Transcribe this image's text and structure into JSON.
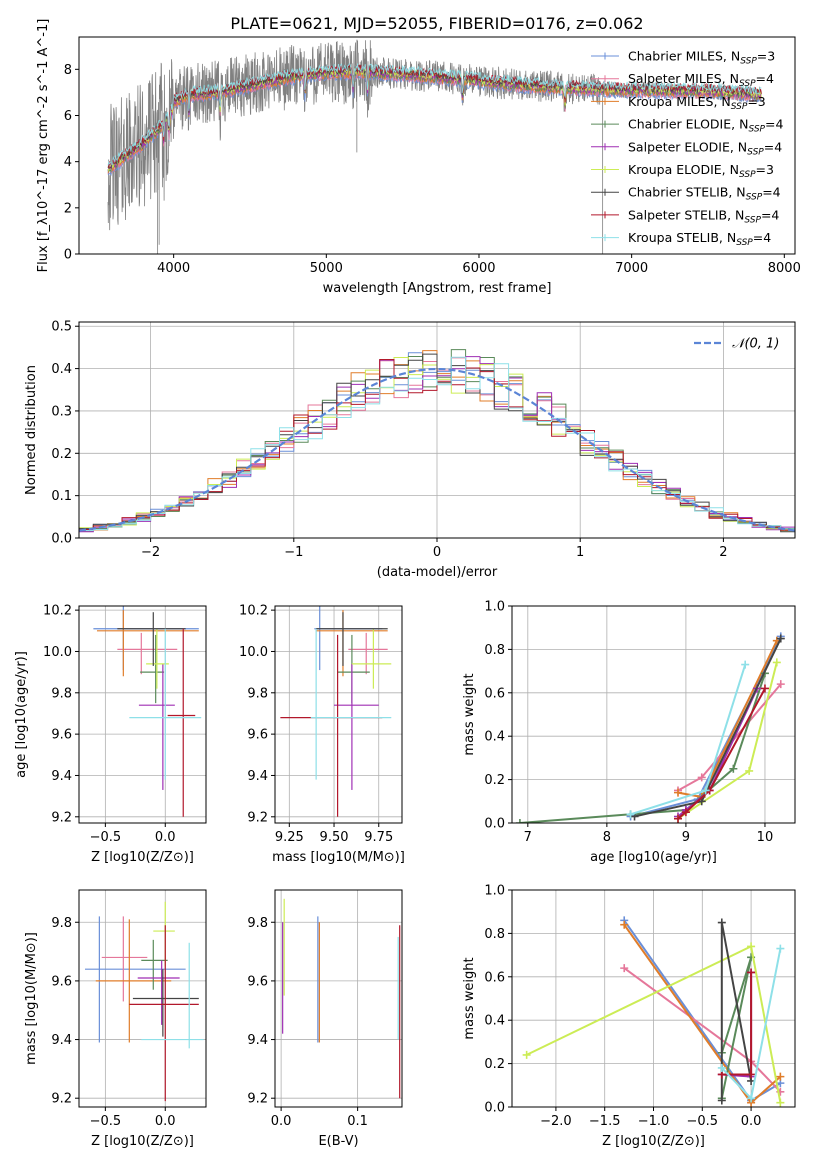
{
  "figure": {
    "title": "PLATE=0621, MJD=52055, FIBERID=0176, z=0.062"
  },
  "colors": {
    "spectrum": "#808080",
    "models": [
      "#6a8fd8",
      "#e5779a",
      "#e07d2a",
      "#5a8a5a",
      "#9f2fb4",
      "#ccec55",
      "#444444",
      "#b2182b",
      "#8ee0e8"
    ],
    "gaussian": "#5b85d6",
    "grid": "#b0b0b0"
  },
  "chart_data": [
    {
      "id": "spectrum",
      "type": "line",
      "title": "PLATE=0621, MJD=52055, FIBERID=0176, z=0.062",
      "xlabel": "wavelength [Angstrom, rest frame]",
      "ylabel": "Flux [f_λ10^-17 erg cm^-2 s^-1 A^-1]",
      "xlim": [
        3380,
        8070
      ],
      "ylim": [
        0,
        9.4
      ],
      "xticks": [
        4000,
        5000,
        6000,
        7000,
        8000
      ],
      "yticks": [
        0,
        2,
        4,
        6,
        8
      ],
      "grid": false,
      "legend_position": "upper-right",
      "continuum": [
        [
          3570,
          4.0
        ],
        [
          3700,
          4.6
        ],
        [
          3800,
          5.1
        ],
        [
          3900,
          5.7
        ],
        [
          4000,
          6.6
        ],
        [
          4100,
          6.9
        ],
        [
          4300,
          7.0
        ],
        [
          4500,
          7.3
        ],
        [
          4800,
          7.7
        ],
        [
          5000,
          7.85
        ],
        [
          5200,
          7.9
        ],
        [
          5500,
          7.8
        ],
        [
          6000,
          7.5
        ],
        [
          6300,
          7.3
        ],
        [
          6700,
          7.15
        ],
        [
          7000,
          7.1
        ],
        [
          7500,
          7.05
        ],
        [
          7850,
          6.9
        ]
      ],
      "absorption_lines": [
        3934,
        3969,
        4101,
        4304,
        4861,
        5175,
        5270,
        5892,
        6563
      ],
      "series": [
        {
          "name": "Chabrier MILES, N_SSP=3",
          "label_main": "Chabrier MILES, N",
          "label_sub": "SSP",
          "label_tail": "=3"
        },
        {
          "name": "Salpeter MILES, N_SSP=4",
          "label_main": "Salpeter MILES, N",
          "label_sub": "SSP",
          "label_tail": "=4"
        },
        {
          "name": "Kroupa MILES, N_SSP=3",
          "label_main": "Kroupa MILES, N",
          "label_sub": "SSP",
          "label_tail": "=3"
        },
        {
          "name": "Chabrier ELODIE, N_SSP=4",
          "label_main": "Chabrier ELODIE, N",
          "label_sub": "SSP",
          "label_tail": "=4"
        },
        {
          "name": "Salpeter ELODIE, N_SSP=4",
          "label_main": "Salpeter ELODIE, N",
          "label_sub": "SSP",
          "label_tail": "=4"
        },
        {
          "name": "Kroupa ELODIE, N_SSP=3",
          "label_main": "Kroupa ELODIE, N",
          "label_sub": "SSP",
          "label_tail": "=3"
        },
        {
          "name": "Chabrier STELIB, N_SSP=4",
          "label_main": "Chabrier STELIB, N",
          "label_sub": "SSP",
          "label_tail": "=4"
        },
        {
          "name": "Salpeter STELIB, N_SSP=4",
          "label_main": "Salpeter STELIB, N",
          "label_sub": "SSP",
          "label_tail": "=4"
        },
        {
          "name": "Kroupa STELIB, N_SSP=4",
          "label_main": "Kroupa STELIB, N",
          "label_sub": "SSP",
          "label_tail": "=4"
        }
      ]
    },
    {
      "id": "residuals",
      "type": "histogram",
      "xlabel": "(data-model)/error",
      "ylabel": "Normed distribution",
      "xlim": [
        -2.5,
        2.5
      ],
      "ylim": [
        0,
        0.51
      ],
      "xticks": [
        -2,
        -1,
        0,
        1,
        2
      ],
      "yticks": [
        0.0,
        0.1,
        0.2,
        0.3,
        0.4,
        0.5
      ],
      "grid": true,
      "legend_position": "upper-right",
      "legend_label": "𝒩(0, 1)",
      "bin_start": -2.5,
      "bin_width": 0.1
    },
    {
      "id": "age-Z",
      "type": "errorbar",
      "xlabel": "Z [log10(Z/Z⊙)]",
      "ylabel": "age  [log10(age/yr)]",
      "xlim": [
        -0.72,
        0.34
      ],
      "ylim": [
        9.17,
        10.22
      ],
      "xticks": [
        -0.5,
        0.0
      ],
      "yticks": [
        9.2,
        9.4,
        9.6,
        9.8,
        10.0,
        10.2
      ],
      "grid": true,
      "points": [
        {
          "series": 0,
          "x": -0.35,
          "xerr": [
            0.25,
            0.63
          ],
          "y": 10.11,
          "yerr": [
            0.2,
            0.11
          ]
        },
        {
          "series": 1,
          "x": -0.2,
          "xerr": [
            0.2,
            0.3
          ],
          "y": 10.01,
          "yerr": [
            0.12,
            0.08
          ]
        },
        {
          "series": 2,
          "x": -0.35,
          "xerr": [
            0.22,
            0.63
          ],
          "y": 10.1,
          "yerr": [
            0.22,
            0.1
          ]
        },
        {
          "series": 3,
          "x": -0.08,
          "xerr": [
            0.13,
            0.07
          ],
          "y": 9.9,
          "yerr": [
            0.15,
            0.18
          ]
        },
        {
          "series": 4,
          "x": -0.02,
          "xerr": [
            0.2,
            0.1
          ],
          "y": 9.74,
          "yerr": [
            0.41,
            0.2
          ]
        },
        {
          "series": 5,
          "x": -0.07,
          "xerr": [
            0.09,
            0.1
          ],
          "y": 9.94,
          "yerr": [
            0.12,
            0.17
          ]
        },
        {
          "series": 6,
          "x": -0.1,
          "xerr": [
            0.3,
            0.27
          ],
          "y": 10.11,
          "yerr": [
            0.18,
            0.08
          ]
        },
        {
          "series": 7,
          "x": 0.15,
          "xerr": [
            0.13,
            0.1
          ],
          "y": 9.69,
          "yerr": [
            0.49,
            0.42
          ]
        },
        {
          "series": 8,
          "x": 0.0,
          "xerr": [
            0.3,
            0.3
          ],
          "y": 9.68,
          "yerr": [
            0.3,
            0.43
          ]
        }
      ]
    },
    {
      "id": "age-mass",
      "type": "errorbar",
      "xlabel": "mass [log10(M/M⊙)]",
      "ylabel": "",
      "xlim": [
        9.17,
        9.88
      ],
      "ylim": [
        9.17,
        10.22
      ],
      "xticks": [
        9.25,
        9.5,
        9.75
      ],
      "yticks": [
        9.2,
        9.4,
        9.6,
        9.8,
        10.0,
        10.2
      ],
      "grid": true,
      "points": [
        {
          "series": 0,
          "x": 9.42,
          "xerr": [
            0.03,
            0.35
          ],
          "y": 10.11,
          "yerr": [
            0.2,
            0.11
          ]
        },
        {
          "series": 1,
          "x": 9.68,
          "xerr": [
            0.1,
            0.12
          ],
          "y": 10.01,
          "yerr": [
            0.12,
            0.08
          ]
        },
        {
          "series": 2,
          "x": 9.55,
          "xerr": [
            0.15,
            0.25
          ],
          "y": 10.1,
          "yerr": [
            0.22,
            0.1
          ]
        },
        {
          "series": 3,
          "x": 9.6,
          "xerr": [
            0.08,
            0.1
          ],
          "y": 9.9,
          "yerr": [
            0.15,
            0.18
          ]
        },
        {
          "series": 4,
          "x": 9.6,
          "xerr": [
            0.1,
            0.15
          ],
          "y": 9.74,
          "yerr": [
            0.41,
            0.2
          ]
        },
        {
          "series": 5,
          "x": 9.72,
          "xerr": [
            0.12,
            0.1
          ],
          "y": 9.94,
          "yerr": [
            0.12,
            0.17
          ]
        },
        {
          "series": 6,
          "x": 9.55,
          "xerr": [
            0.15,
            0.25
          ],
          "y": 10.11,
          "yerr": [
            0.18,
            0.08
          ]
        },
        {
          "series": 7,
          "x": 9.52,
          "xerr": [
            0.32,
            0.25
          ],
          "y": 9.68,
          "yerr": [
            0.48,
            0.4
          ]
        },
        {
          "series": 8,
          "x": 9.4,
          "xerr": [
            0.03,
            0.42
          ],
          "y": 9.68,
          "yerr": [
            0.3,
            0.43
          ]
        }
      ]
    },
    {
      "id": "mass-weight-age",
      "type": "line",
      "xlabel": "age  [log10(age/yr)]",
      "ylabel": "mass weight",
      "xlim": [
        6.8,
        10.38
      ],
      "ylim": [
        0,
        1.0
      ],
      "xticks": [
        7,
        8,
        9,
        10
      ],
      "yticks": [
        0.0,
        0.2,
        0.4,
        0.6,
        0.8,
        1.0
      ],
      "grid": true,
      "series": [
        {
          "series": 0,
          "x": [
            8.3,
            9.15,
            10.2
          ],
          "y": [
            0.03,
            0.11,
            0.86
          ]
        },
        {
          "series": 1,
          "x": [
            8.9,
            9.2,
            10.2
          ],
          "y": [
            0.15,
            0.21,
            0.64
          ]
        },
        {
          "series": 2,
          "x": [
            8.9,
            9.2,
            10.15
          ],
          "y": [
            0.14,
            0.12,
            0.84
          ]
        },
        {
          "series": 3,
          "x": [
            6.9,
            8.3,
            9.0,
            9.6,
            10.0
          ],
          "y": [
            0.0,
            0.04,
            0.06,
            0.25,
            0.69
          ]
        },
        {
          "series": 4,
          "x": [
            8.9,
            9.0,
            9.3,
            9.9
          ],
          "y": [
            0.03,
            0.06,
            0.15,
            0.62
          ]
        },
        {
          "series": 5,
          "x": [
            8.9,
            9.8,
            10.15
          ],
          "y": [
            0.02,
            0.24,
            0.74
          ]
        },
        {
          "series": 6,
          "x": [
            8.35,
            9.2,
            10.2
          ],
          "y": [
            0.03,
            0.1,
            0.85
          ]
        },
        {
          "series": 7,
          "x": [
            8.9,
            9.0,
            9.3,
            10.0
          ],
          "y": [
            0.02,
            0.05,
            0.15,
            0.62
          ]
        },
        {
          "series": 8,
          "x": [
            8.3,
            9.25,
            9.75
          ],
          "y": [
            0.04,
            0.15,
            0.73
          ]
        }
      ]
    },
    {
      "id": "mass-Z",
      "type": "errorbar",
      "xlabel": "Z [log10(Z/Z⊙)]",
      "ylabel": "mass [log10(M/M⊙)]",
      "xlim": [
        -0.72,
        0.34
      ],
      "ylim": [
        9.17,
        9.91
      ],
      "xticks": [
        -0.5,
        0.0
      ],
      "yticks": [
        9.2,
        9.4,
        9.6,
        9.8
      ],
      "grid": true,
      "points": [
        {
          "series": 0,
          "x": -0.55,
          "xerr": [
            0.12,
            0.72
          ],
          "y": 9.64,
          "yerr": [
            0.25,
            0.18
          ]
        },
        {
          "series": 1,
          "x": -0.35,
          "xerr": [
            0.18,
            0.2
          ],
          "y": 9.68,
          "yerr": [
            0.15,
            0.14
          ]
        },
        {
          "series": 2,
          "x": -0.3,
          "xerr": [
            0.28,
            0.35
          ],
          "y": 9.6,
          "yerr": [
            0.21,
            0.21
          ]
        },
        {
          "series": 3,
          "x": -0.1,
          "xerr": [
            0.1,
            0.12
          ],
          "y": 9.67,
          "yerr": [
            0.1,
            0.07
          ]
        },
        {
          "series": 4,
          "x": -0.03,
          "xerr": [
            0.2,
            0.15
          ],
          "y": 9.61,
          "yerr": [
            0.16,
            0.06
          ]
        },
        {
          "series": 5,
          "x": 0.0,
          "xerr": [
            0.1,
            0.08
          ],
          "y": 9.77,
          "yerr": [
            0.12,
            0.1
          ]
        },
        {
          "series": 6,
          "x": -0.02,
          "xerr": [
            0.25,
            0.3
          ],
          "y": 9.54,
          "yerr": [
            0.13,
            0.1
          ]
        },
        {
          "series": 7,
          "x": 0.0,
          "xerr": [
            0.3,
            0.28
          ],
          "y": 9.52,
          "yerr": [
            0.33,
            0.27
          ]
        },
        {
          "series": 8,
          "x": 0.2,
          "xerr": [
            0.4,
            0.12
          ],
          "y": 9.4,
          "yerr": [
            0.03,
            0.33
          ]
        }
      ]
    },
    {
      "id": "mass-ebv",
      "type": "errorbar",
      "xlabel": "E(B-V)",
      "ylabel": "",
      "xlim": [
        -0.008,
        0.158
      ],
      "ylim": [
        9.17,
        9.91
      ],
      "xticks": [
        0.0,
        0.1
      ],
      "yticks": [
        9.2,
        9.4,
        9.6,
        9.8
      ],
      "grid": true,
      "points": [
        {
          "series": 0,
          "x": 0.048,
          "xerr": [
            0,
            0
          ],
          "y": 9.6,
          "yerr": [
            0.21,
            0.22
          ]
        },
        {
          "series": 2,
          "x": 0.05,
          "xerr": [
            0,
            0
          ],
          "y": 9.6,
          "yerr": [
            0.21,
            0.2
          ]
        },
        {
          "series": 4,
          "x": 0.002,
          "xerr": [
            0,
            0
          ],
          "y": 9.6,
          "yerr": [
            0.18,
            0.2
          ]
        },
        {
          "series": 5,
          "x": 0.004,
          "xerr": [
            0,
            0
          ],
          "y": 9.7,
          "yerr": [
            0.15,
            0.18
          ]
        },
        {
          "series": 7,
          "x": 0.155,
          "xerr": [
            0,
            0
          ],
          "y": 9.54,
          "yerr": [
            0.34,
            0.25
          ]
        },
        {
          "series": 8,
          "x": 0.153,
          "xerr": [
            0,
            0
          ],
          "y": 9.55,
          "yerr": [
            0.15,
            0.2
          ]
        }
      ]
    },
    {
      "id": "mass-weight-Z",
      "type": "line",
      "xlabel": "Z [log10(Z/Z⊙)]",
      "ylabel": "mass weight",
      "xlim": [
        -2.45,
        0.45
      ],
      "ylim": [
        0,
        1.0
      ],
      "xticks": [
        -2.0,
        -1.5,
        -1.0,
        -0.5,
        0.0
      ],
      "yticks": [
        0.0,
        0.2,
        0.4,
        0.6,
        0.8,
        1.0
      ],
      "grid": true,
      "series": [
        {
          "series": 0,
          "x": [
            -1.3,
            0.0,
            0.3
          ],
          "y": [
            0.86,
            0.03,
            0.11
          ]
        },
        {
          "series": 1,
          "x": [
            -1.3,
            0.0,
            0.3
          ],
          "y": [
            0.64,
            0.21,
            0.07
          ]
        },
        {
          "series": 2,
          "x": [
            -1.3,
            0.0,
            0.3
          ],
          "y": [
            0.84,
            0.02,
            0.14
          ]
        },
        {
          "series": 3,
          "x": [
            -0.3,
            0.0,
            -0.3
          ],
          "y": [
            0.04,
            0.69,
            0.25
          ]
        },
        {
          "series": 4,
          "x": [
            -0.3,
            0.0,
            0.0
          ],
          "y": [
            0.15,
            0.14,
            0.62
          ]
        },
        {
          "series": 5,
          "x": [
            -2.3,
            0.0,
            0.3
          ],
          "y": [
            0.24,
            0.74,
            0.02
          ]
        },
        {
          "series": 6,
          "x": [
            -0.3,
            -0.3,
            0.0
          ],
          "y": [
            0.03,
            0.85,
            0.12
          ]
        },
        {
          "series": 7,
          "x": [
            -0.3,
            0.0,
            0.0
          ],
          "y": [
            0.15,
            0.15,
            0.62
          ]
        },
        {
          "series": 8,
          "x": [
            -0.3,
            0.0,
            0.3
          ],
          "y": [
            0.18,
            0.04,
            0.73
          ]
        }
      ]
    }
  ]
}
